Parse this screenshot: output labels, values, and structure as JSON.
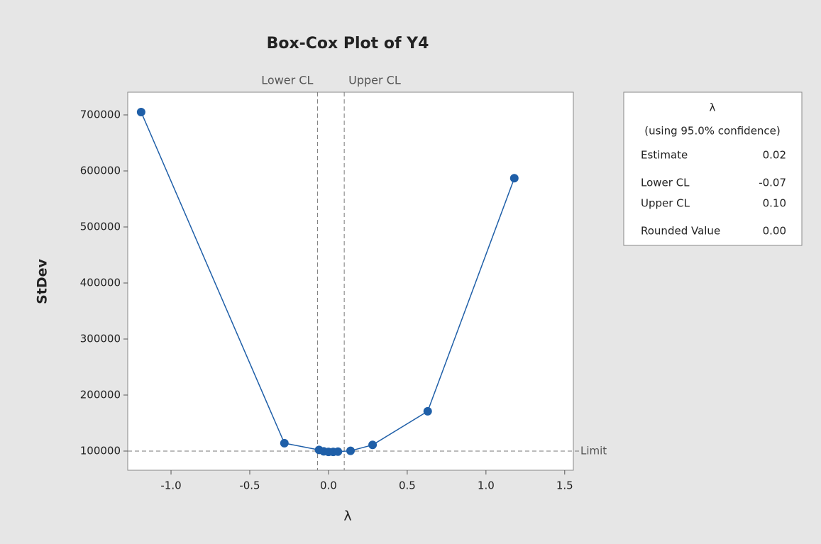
{
  "chart_data": {
    "type": "line",
    "title": "Box-Cox Plot of Y4",
    "xlabel": "λ",
    "ylabel": "StDev",
    "x": [
      -1.19,
      -0.28,
      -0.06,
      -0.03,
      0.0,
      0.03,
      0.06,
      0.14,
      0.28,
      0.63,
      1.18
    ],
    "series": [
      {
        "name": "StDev",
        "color": "#1f5fa8",
        "values": [
          705000,
          114000,
          102000,
          99500,
          98500,
          98500,
          99000,
          100500,
          111000,
          171000,
          587000
        ]
      }
    ],
    "xlim": [
      -1.275,
      1.555
    ],
    "xticks": [
      {
        "value": -1.0,
        "label": "-1.0"
      },
      -0.5,
      {
        "value": 0.0,
        "label": "0.0"
      },
      0.5,
      {
        "value": 1.0,
        "label": "1.0"
      },
      1.5
    ],
    "ylim": [
      65800,
      740500
    ],
    "yticks": [
      100000,
      200000,
      300000,
      400000,
      500000,
      600000,
      700000
    ],
    "reference_lines": [
      {
        "axis": "x",
        "value": -0.07,
        "label": "Lower CL"
      },
      {
        "axis": "x",
        "value": 0.1,
        "label": "Upper CL"
      },
      {
        "axis": "y",
        "value": 100000,
        "label": "Limit"
      }
    ],
    "legend_box": {
      "title": "λ",
      "subtitle": "(using 95.0% confidence)",
      "rows": [
        {
          "name": "Estimate",
          "value": "0.02"
        },
        {
          "name": "Lower CL",
          "value": "-0.07"
        },
        {
          "name": "Upper CL",
          "value": "0.10"
        },
        {
          "name": "Rounded Value",
          "value": "0.00"
        }
      ]
    }
  }
}
